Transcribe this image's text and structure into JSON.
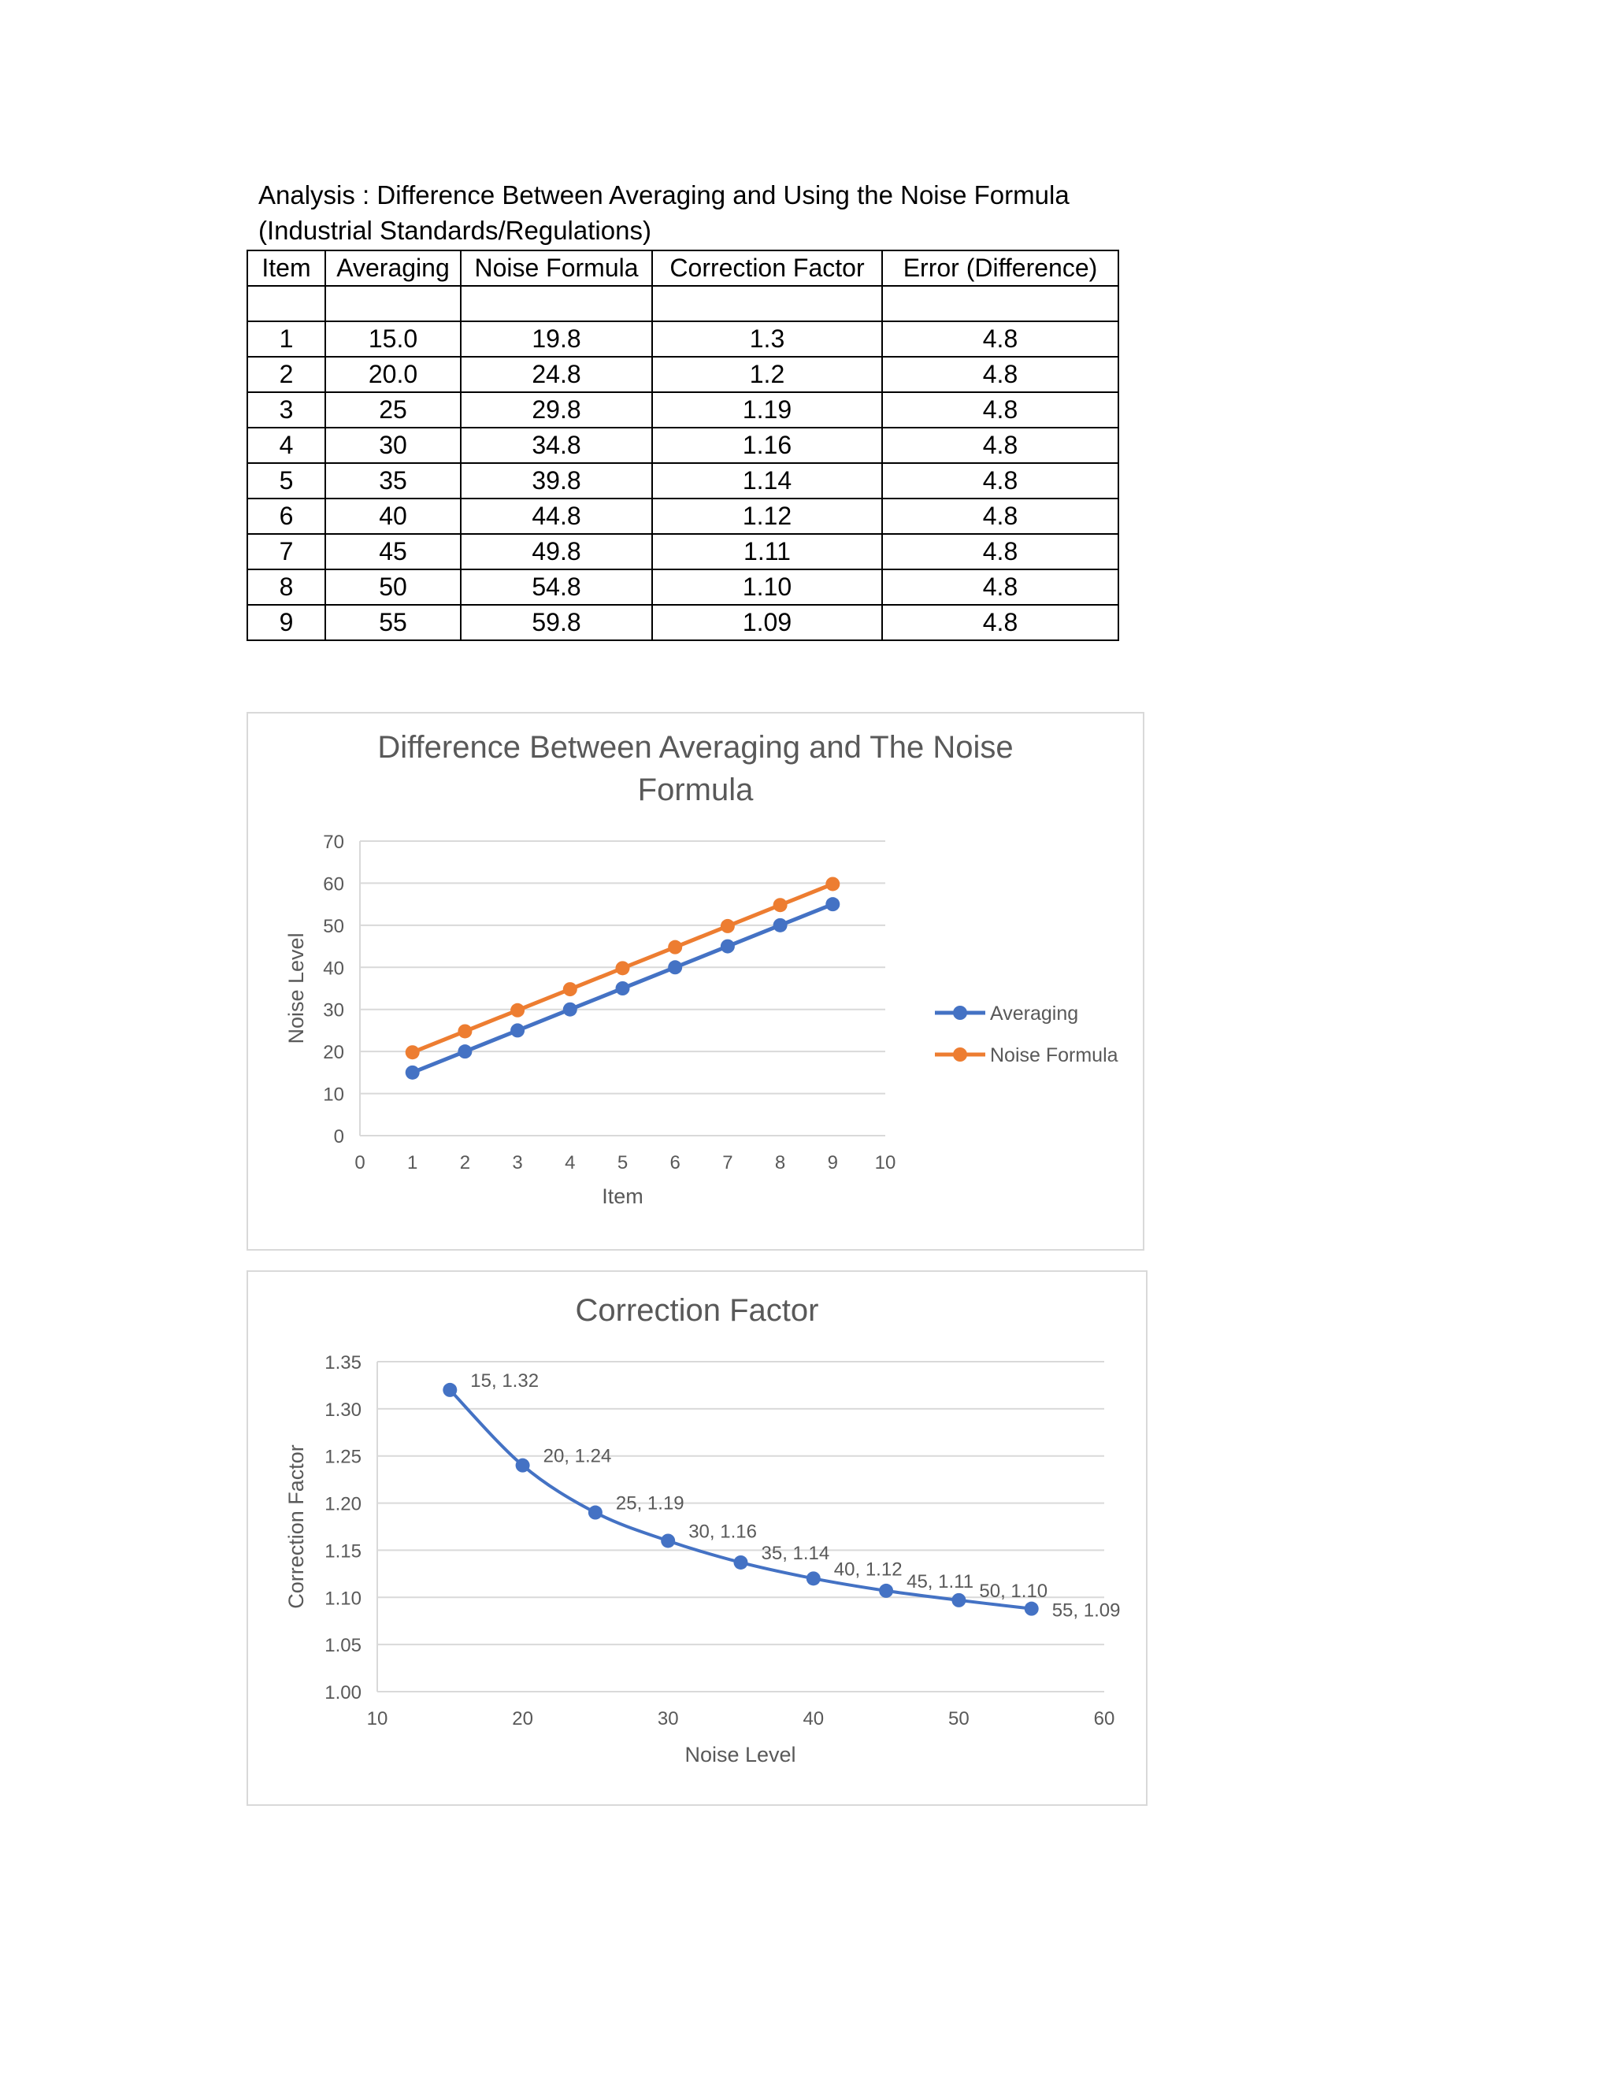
{
  "heading": {
    "line1": "Analysis : Difference Between Averaging and Using the Noise Formula",
    "line2": "(Industrial Standards/Regulations)"
  },
  "table": {
    "headers": [
      "Item",
      "Averaging",
      "Noise Formula",
      "Correction Factor",
      "Error (Difference)"
    ],
    "rows": [
      [
        "",
        "",
        "",
        "",
        ""
      ],
      [
        "1",
        "15.0",
        "19.8",
        "1.3",
        "4.8"
      ],
      [
        "2",
        "20.0",
        "24.8",
        "1.2",
        "4.8"
      ],
      [
        "3",
        "25",
        "29.8",
        "1.19",
        "4.8"
      ],
      [
        "4",
        "30",
        "34.8",
        "1.16",
        "4.8"
      ],
      [
        "5",
        "35",
        "39.8",
        "1.14",
        "4.8"
      ],
      [
        "6",
        "40",
        "44.8",
        "1.12",
        "4.8"
      ],
      [
        "7",
        "45",
        "49.8",
        "1.11",
        "4.8"
      ],
      [
        "8",
        "50",
        "54.8",
        "1.10",
        "4.8"
      ],
      [
        "9",
        "55",
        "59.8",
        "1.09",
        "4.8"
      ]
    ]
  },
  "colors": {
    "averaging": "#4472C4",
    "noise_formula": "#ED7D31",
    "grid": "#d9d9d9",
    "axis_text": "#595959"
  },
  "chart_data": [
    {
      "type": "line",
      "title_line1": "Difference Between Averaging and The Noise",
      "title_line2": "Formula",
      "xlabel": "Item",
      "ylabel": "Noise Level",
      "xlim": [
        0,
        10
      ],
      "ylim": [
        0,
        70
      ],
      "xticks": [
        "0",
        "1",
        "2",
        "3",
        "4",
        "5",
        "6",
        "7",
        "8",
        "9",
        "10"
      ],
      "yticks": [
        "0",
        "10",
        "20",
        "30",
        "40",
        "50",
        "60",
        "70"
      ],
      "grid": true,
      "legend": "right",
      "x": [
        1,
        2,
        3,
        4,
        5,
        6,
        7,
        8,
        9
      ],
      "series": [
        {
          "name": "Averaging",
          "values": [
            15,
            20,
            25,
            30,
            35,
            40,
            45,
            50,
            55
          ]
        },
        {
          "name": "Noise Formula",
          "values": [
            19.8,
            24.8,
            29.8,
            34.8,
            39.8,
            44.8,
            49.8,
            54.8,
            59.8
          ]
        }
      ]
    },
    {
      "type": "scatter",
      "title": "Correction Factor",
      "xlabel": "Noise Level",
      "ylabel": "Correction Factor",
      "xlim": [
        10,
        60
      ],
      "ylim": [
        1.0,
        1.35
      ],
      "xticks": [
        "10",
        "20",
        "30",
        "40",
        "50",
        "60"
      ],
      "yticks": [
        "1.00",
        "1.05",
        "1.10",
        "1.15",
        "1.20",
        "1.25",
        "1.30",
        "1.35"
      ],
      "grid": true,
      "smooth": true,
      "x": [
        15,
        20,
        25,
        30,
        35,
        40,
        45,
        50,
        55
      ],
      "y": [
        1.32,
        1.24,
        1.19,
        1.16,
        1.137,
        1.12,
        1.107,
        1.097,
        1.088
      ],
      "labels": [
        "15, 1.32",
        "20, 1.24",
        "25, 1.19",
        "30, 1.16",
        "35, 1.14",
        "40, 1.12",
        "45, 1.11",
        "50, 1.10",
        "55, 1.09"
      ]
    }
  ]
}
